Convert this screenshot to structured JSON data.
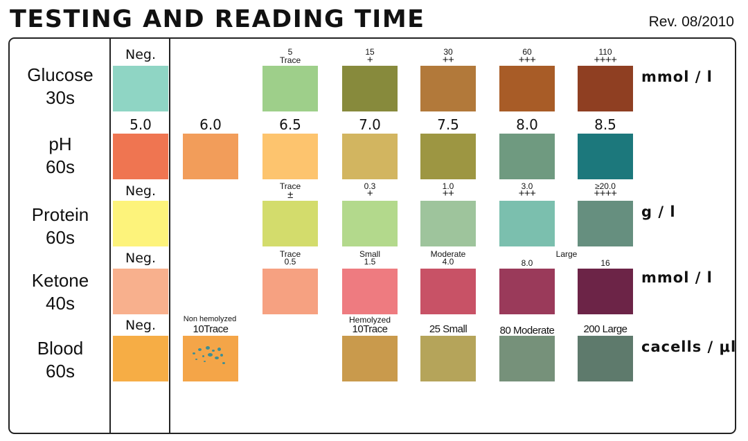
{
  "header": {
    "title": "TESTING AND READING TIME",
    "revision": "Rev. 08/2010"
  },
  "rows": {
    "glucose": {
      "name": "Glucose",
      "time": "30s",
      "unit": "mmol / l",
      "labels": [
        "Neg.",
        "5",
        "Trace",
        "15",
        "+",
        "30",
        "++",
        "60",
        "+++",
        "110",
        "++++"
      ],
      "colors": [
        "#8fd5c4",
        "#9ecf8a",
        "#878a3c",
        "#b2793a",
        "#a85c27",
        "#8f3f22"
      ]
    },
    "ph": {
      "name": "pH",
      "time": "60s",
      "labels": [
        "5.0",
        "6.0",
        "6.5",
        "7.0",
        "7.5",
        "8.0",
        "8.5"
      ],
      "colors": [
        "#ef7551",
        "#f29d5a",
        "#fdc46e",
        "#d2b560",
        "#9d9642",
        "#6f9a80",
        "#1c787c"
      ]
    },
    "protein": {
      "name": "Protein",
      "time": "60s",
      "unit": "g / l",
      "labels": [
        "Neg.",
        "Trace",
        "±",
        "0.3",
        "+",
        "1.0",
        "++",
        "3.0",
        "+++",
        "≥20.0",
        "++++"
      ],
      "colors": [
        "#fdf37b",
        "#d3dc6c",
        "#b3d98c",
        "#9ec49c",
        "#7bbfae",
        "#668f7f"
      ]
    },
    "ketone": {
      "name": "Ketone",
      "time": "40s",
      "unit": "mmol / l",
      "labels": [
        "Neg.",
        "Trace",
        "0.5",
        "Small",
        "1.5",
        "Moderate",
        "4.0",
        "Large",
        "8.0",
        "16"
      ],
      "colors": [
        "#f8b08d",
        "#f6a181",
        "#ee7b80",
        "#c85266",
        "#9a3a5a",
        "#6c2447"
      ]
    },
    "blood": {
      "name": "Blood",
      "time": "60s",
      "unit": "cacells / μl",
      "labels": [
        "Neg.",
        "Non hemolyzed",
        "10Trace",
        "Hemolyzed",
        "10Trace",
        "25 Small",
        "80 Moderate",
        "200 Large"
      ],
      "colors": [
        "#f6ad45",
        "#f4a548",
        "#c99a4c",
        "#b5a45a",
        "#76917a",
        "#5e7a6c"
      ]
    }
  }
}
